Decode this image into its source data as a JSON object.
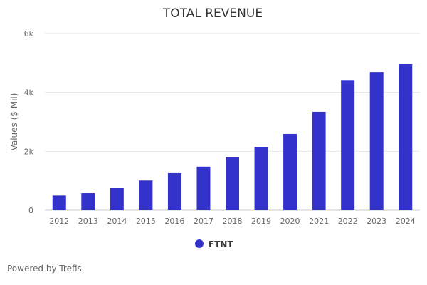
{
  "chart_data": {
    "type": "bar",
    "title": "TOTAL REVENUE",
    "ylabel": "Values ($ Mil)",
    "xlabel": "",
    "categories": [
      "2012",
      "2013",
      "2014",
      "2015",
      "2016",
      "2017",
      "2018",
      "2019",
      "2020",
      "2021",
      "2022",
      "2023",
      "2024"
    ],
    "series": [
      {
        "name": "FTNT",
        "values": [
          500,
          580,
          750,
          1010,
          1260,
          1480,
          1800,
          2150,
          2590,
          3340,
          4420,
          4690,
          4960
        ]
      }
    ],
    "ylim": [
      0,
      6000
    ],
    "yticks": [
      {
        "value": 0,
        "label": "0"
      },
      {
        "value": 2000,
        "label": "2k"
      },
      {
        "value": 4000,
        "label": "4k"
      },
      {
        "value": 6000,
        "label": "6k"
      }
    ],
    "grid": true,
    "legend_position": "bottom-center",
    "colors": {
      "bar": "#3333cc",
      "grid": "#e6e6e6",
      "axis_text": "#666666",
      "title": "#333333"
    }
  },
  "footer": {
    "credit": "Powered by Trefis"
  }
}
